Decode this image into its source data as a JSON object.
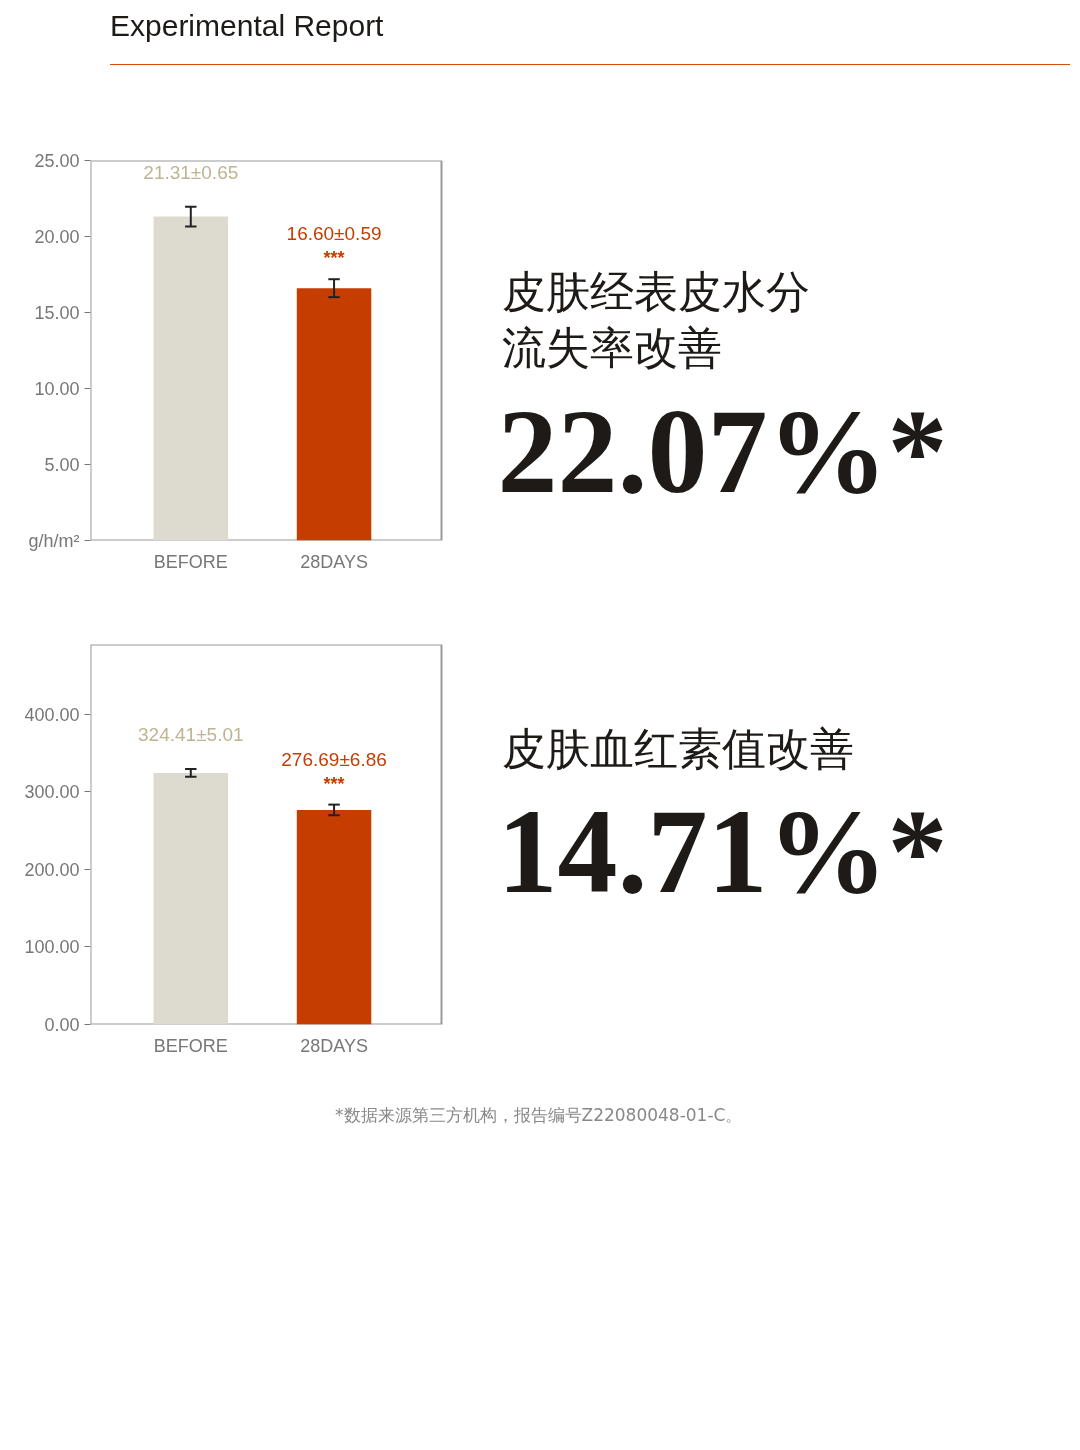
{
  "chart_data": [
    {
      "type": "bar",
      "title": "Experimental Report",
      "categories": [
        "BEFORE",
        "28DAYS"
      ],
      "values": [
        21.31,
        16.6
      ],
      "colors": [
        "#dddbd0",
        "#c63d00"
      ],
      "errors": [
        0.65,
        0.59
      ],
      "value_labels": [
        "21.31±0.65",
        "16.60±0.59"
      ],
      "ylim": [
        0,
        25
      ],
      "yticks": [
        {
          "value": 0,
          "label": "g/h/m²"
        },
        {
          "value": 5,
          "label": "5.00"
        },
        {
          "value": 10,
          "label": "10.00"
        },
        {
          "value": 15,
          "label": "15.00"
        },
        {
          "value": 20,
          "label": "20.00"
        },
        {
          "value": 25,
          "label": "25.00"
        }
      ],
      "grid": false,
      "annotations": [
        "***",
        "皮肤经表皮水分流失率改善",
        "22.07%*"
      ]
    },
    {
      "type": "bar",
      "categories": [
        "BEFORE",
        "28DAYS"
      ],
      "values": [
        324.41,
        276.69
      ],
      "colors": [
        "#dddbd0",
        "#c63d00"
      ],
      "errors": [
        5.01,
        6.86
      ],
      "value_labels": [
        "324.41±5.01",
        "276.69±6.86"
      ],
      "ylim": [
        0,
        490
      ],
      "yticks": [
        {
          "value": 0,
          "label": "0.00"
        },
        {
          "value": 100,
          "label": "100.00"
        },
        {
          "value": 200,
          "label": "200.00"
        },
        {
          "value": 300,
          "label": "300.00"
        },
        {
          "value": 400,
          "label": "400.00"
        }
      ],
      "grid": false,
      "annotations": [
        "***",
        "皮肤血红素值改善",
        "14.71%*",
        "*数据来源第三方机构，报告编号Z22080048-01-C。"
      ]
    }
  ]
}
